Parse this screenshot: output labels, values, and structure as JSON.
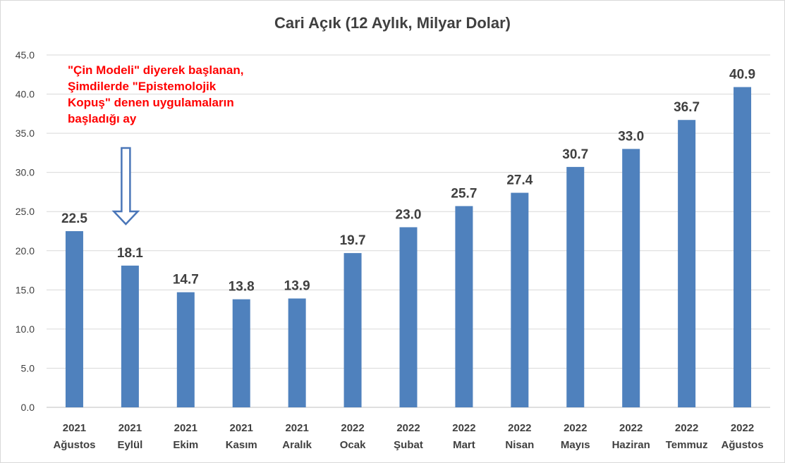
{
  "chart_data": {
    "type": "bar",
    "title": "Cari Açık (12 Aylık, Milyar Dolar)",
    "categories": [
      [
        "2021",
        "Ağustos"
      ],
      [
        "2021",
        "Eylül"
      ],
      [
        "2021",
        "Ekim"
      ],
      [
        "2021",
        "Kasım"
      ],
      [
        "2021",
        "Aralık"
      ],
      [
        "2022",
        "Ocak"
      ],
      [
        "2022",
        "Şubat"
      ],
      [
        "2022",
        "Mart"
      ],
      [
        "2022",
        "Nisan"
      ],
      [
        "2022",
        "Mayıs"
      ],
      [
        "2022",
        "Haziran"
      ],
      [
        "2022",
        "Temmuz"
      ],
      [
        "2022",
        "Ağustos"
      ]
    ],
    "values": [
      22.5,
      18.1,
      14.7,
      13.8,
      13.9,
      19.7,
      23.0,
      25.7,
      27.4,
      30.7,
      33.0,
      36.7,
      40.9
    ],
    "data_labels": [
      "22.5",
      "18.1",
      "14.7",
      "13.8",
      "13.9",
      "19.7",
      "23.0",
      "25.7",
      "27.4",
      "30.7",
      "33.0",
      "36.7",
      "40.9"
    ],
    "ylim": [
      0,
      45
    ],
    "yticks": [
      "0.0",
      "5.0",
      "10.0",
      "15.0",
      "20.0",
      "25.0",
      "30.0",
      "35.0",
      "40.0",
      "45.0"
    ],
    "grid": true,
    "legend": "none",
    "bar_color": "#4f81bd",
    "annotation": {
      "lines": [
        "\"Çin Modeli\" diyerek başlanan,",
        "Şimdilerde \"Epistemolojik",
        "Kopuş\" denen uygulamaların",
        "başladığı ay"
      ],
      "color": "#ff0000",
      "target_index": 1
    }
  }
}
